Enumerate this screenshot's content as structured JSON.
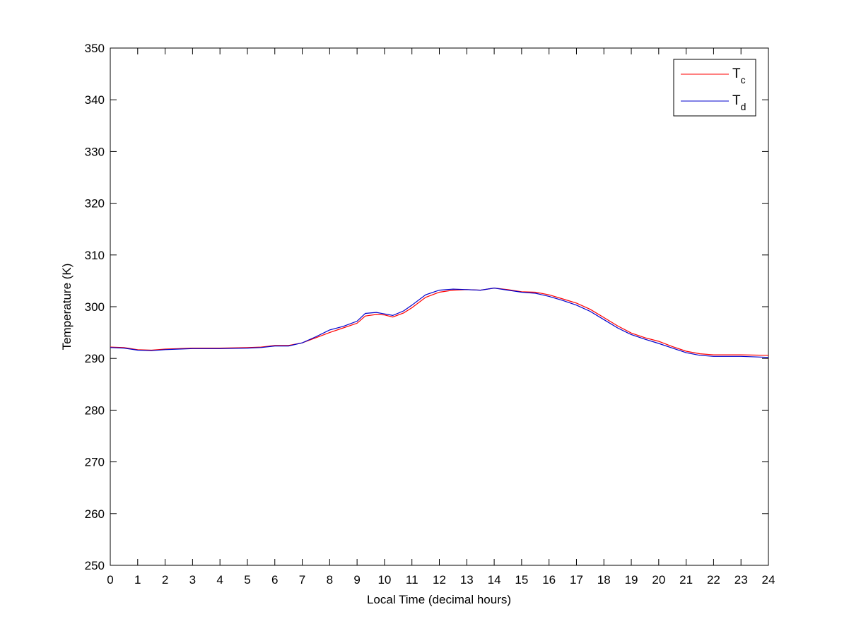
{
  "chart_data": {
    "type": "line",
    "title": "",
    "xlabel": "Local Time (decimal hours)",
    "ylabel": "Temperature (K)",
    "xlim": [
      0,
      24
    ],
    "ylim": [
      250,
      350
    ],
    "xticks": [
      0,
      1,
      2,
      3,
      4,
      5,
      6,
      7,
      8,
      9,
      10,
      11,
      12,
      13,
      14,
      15,
      16,
      17,
      18,
      19,
      20,
      21,
      22,
      23,
      24
    ],
    "yticks": [
      250,
      260,
      270,
      280,
      290,
      300,
      310,
      320,
      330,
      340,
      350
    ],
    "grid": false,
    "legend_position": "top-right",
    "x": [
      0,
      0.5,
      1,
      1.5,
      2,
      2.5,
      3,
      4,
      5,
      5.5,
      6,
      6.5,
      7,
      7.5,
      8,
      8.5,
      9,
      9.3,
      9.7,
      10,
      10.3,
      10.7,
      11,
      11.5,
      12,
      12.5,
      13,
      13.5,
      14,
      14.5,
      15,
      15.5,
      16,
      16.5,
      17,
      17.5,
      18,
      18.5,
      19,
      19.5,
      20,
      20.5,
      21,
      21.5,
      22,
      23,
      24
    ],
    "series": [
      {
        "name": "T",
        "subscript": "c",
        "color": "#ff0000",
        "values": [
          292.2,
          292.1,
          291.7,
          291.6,
          291.8,
          291.9,
          292.0,
          292.0,
          292.1,
          292.2,
          292.5,
          292.5,
          293.0,
          294.0,
          295.0,
          295.9,
          296.8,
          298.2,
          298.5,
          298.4,
          298.0,
          298.8,
          299.8,
          301.8,
          302.8,
          303.2,
          303.3,
          303.2,
          303.6,
          303.3,
          302.9,
          302.8,
          302.3,
          301.5,
          300.7,
          299.5,
          297.9,
          296.3,
          294.9,
          294.0,
          293.3,
          292.3,
          291.4,
          290.9,
          290.7,
          290.7,
          290.6
        ]
      },
      {
        "name": "T",
        "subscript": "d",
        "color": "#0000cc",
        "values": [
          292.1,
          292.0,
          291.6,
          291.5,
          291.7,
          291.8,
          291.9,
          291.9,
          292.0,
          292.1,
          292.4,
          292.4,
          293.0,
          294.2,
          295.5,
          296.2,
          297.2,
          298.7,
          298.9,
          298.6,
          298.3,
          299.2,
          300.3,
          302.3,
          303.2,
          303.4,
          303.3,
          303.2,
          303.6,
          303.2,
          302.8,
          302.6,
          302.0,
          301.2,
          300.3,
          299.1,
          297.5,
          295.9,
          294.6,
          293.7,
          292.9,
          292.0,
          291.1,
          290.6,
          290.4,
          290.4,
          290.2
        ]
      }
    ]
  }
}
